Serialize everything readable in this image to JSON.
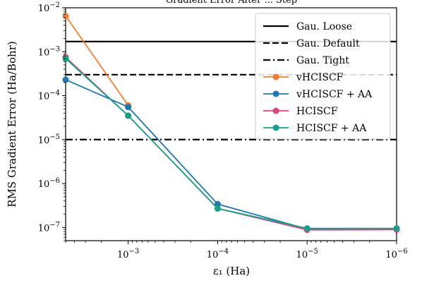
{
  "chart_data": {
    "type": "line",
    "title": "Gradient Error After ... Step",
    "xlabel": "ε₁ (Ha)",
    "ylabel": "RMS Gradient Error (Ha/Bohr)",
    "x_scale": "log-reversed",
    "y_scale": "log",
    "xlim": [
      0.005,
      1e-06
    ],
    "ylim": [
      5e-08,
      0.01
    ],
    "x_ticks": [
      {
        "value": 0.001,
        "label": "10^-3"
      },
      {
        "value": 0.0001,
        "label": "10^-4"
      },
      {
        "value": 1e-05,
        "label": "10^-5"
      },
      {
        "value": 1e-06,
        "label": "10^-6"
      }
    ],
    "y_ticks": [
      {
        "value": 1e-07,
        "label": "10^-7"
      },
      {
        "value": 1e-06,
        "label": "10^-6"
      },
      {
        "value": 1e-05,
        "label": "10^-5"
      },
      {
        "value": 0.0001,
        "label": "10^-4"
      },
      {
        "value": 0.001,
        "label": "10^-3"
      },
      {
        "value": 0.01,
        "label": "10^-2"
      }
    ],
    "reference_lines": [
      {
        "name": "Gau. Loose",
        "y": 0.0017,
        "style": "solid",
        "color": "#000000"
      },
      {
        "name": "Gau. Default",
        "y": 0.0003,
        "style": "dashed",
        "color": "#000000"
      },
      {
        "name": "Gau. Tight",
        "y": 1e-05,
        "style": "dashdot",
        "color": "#000000"
      }
    ],
    "series": [
      {
        "name": "vHCISCF",
        "color": "#f07f35",
        "x": [
          0.005,
          0.001
        ],
        "y": [
          0.0065,
          6e-05
        ]
      },
      {
        "name": "vHCISCF + AA",
        "color": "#1f77b4",
        "x": [
          0.005,
          0.001,
          0.0001,
          1e-05,
          1e-06
        ],
        "y": [
          0.00023,
          5.5e-05,
          3.4e-07,
          9.2e-08,
          9.2e-08
        ]
      },
      {
        "name": "HCISCF",
        "color": "#e0457b",
        "x": [
          0.005,
          0.001,
          0.0001,
          1e-05,
          1e-06
        ],
        "y": [
          0.00075,
          3.5e-05,
          2.7e-07,
          8.8e-08,
          8.9e-08
        ]
      },
      {
        "name": "HCISCF + AA",
        "color": "#17a08a",
        "x": [
          0.005,
          0.001,
          0.0001,
          1e-05,
          1e-06
        ],
        "y": [
          0.0007,
          3.5e-05,
          2.7e-07,
          9.5e-08,
          9.5e-08
        ]
      }
    ],
    "legend_position": "top-right",
    "grid": false
  }
}
